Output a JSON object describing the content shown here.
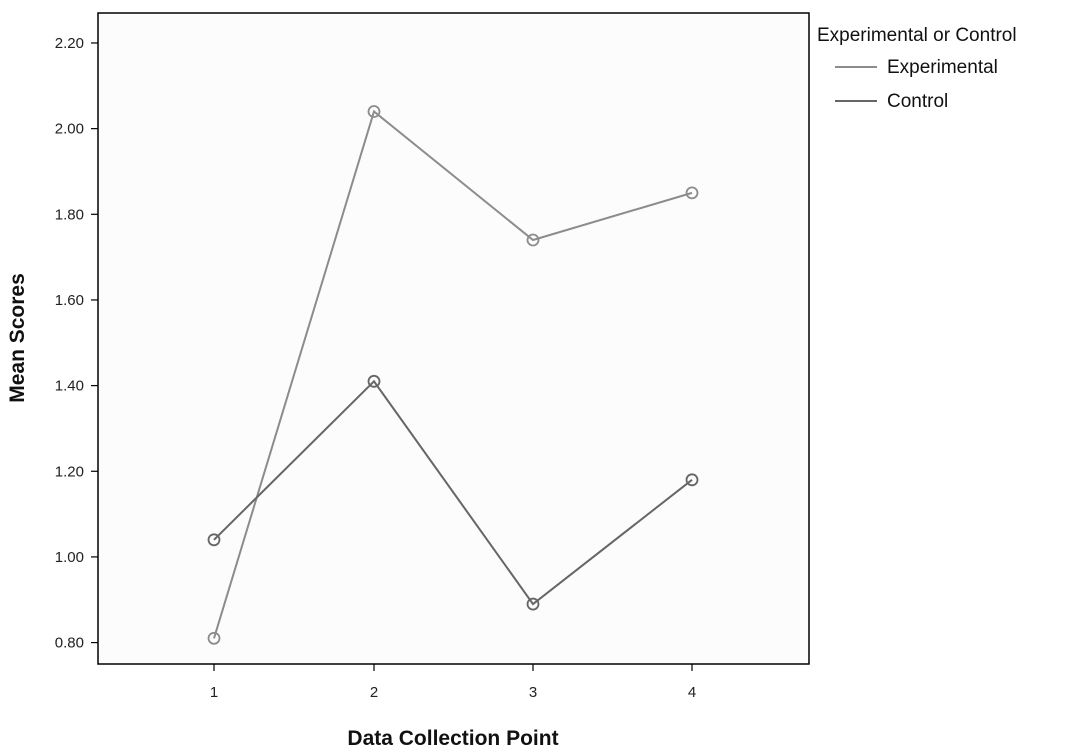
{
  "chart_data": {
    "type": "line",
    "xlabel": "Data Collection Point",
    "ylabel": "Mean Scores",
    "x": [
      1,
      2,
      3,
      4
    ],
    "x_tick_labels": [
      "1",
      "2",
      "3",
      "4"
    ],
    "ylim": [
      0.75,
      2.27
    ],
    "y_ticks": [
      0.8,
      1.0,
      1.2,
      1.4,
      1.6,
      1.8,
      2.0,
      2.2
    ],
    "y_tick_labels": [
      "0.80",
      "1.00",
      "1.20",
      "1.40",
      "1.60",
      "1.80",
      "2.00",
      "2.20"
    ],
    "grid": false,
    "legend": {
      "title": "Experimental or Control",
      "placement": "outside-right-top"
    },
    "series": [
      {
        "name": "Experimental",
        "values": [
          0.81,
          2.04,
          1.74,
          1.85
        ],
        "color": "#8c8c8c"
      },
      {
        "name": "Control",
        "values": [
          1.04,
          1.41,
          0.89,
          1.18
        ],
        "color": "#666666"
      }
    ],
    "marker": "open-circle",
    "colors": {
      "plot_background": "#fcfcfc",
      "axis": "#000000"
    }
  }
}
